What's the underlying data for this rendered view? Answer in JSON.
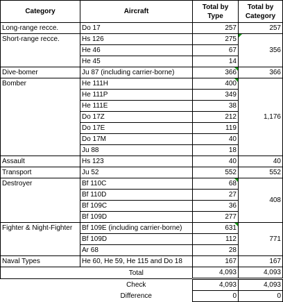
{
  "header": {
    "category": "Category",
    "aircraft": "Aircraft",
    "total_by_type": "Total by Type",
    "total_by_category": "Total by Category"
  },
  "rows": [
    {
      "category": "Long-range recce.",
      "aircraft": "Do 17",
      "total_type": "257",
      "total_category": "257"
    },
    {
      "category": "Short-range recce.",
      "aircraft": "Hs 126",
      "total_type": "275",
      "total_category": ""
    },
    {
      "category": "",
      "aircraft": "He 46",
      "total_type": "67",
      "total_category": "356"
    },
    {
      "category": "",
      "aircraft": "He 45",
      "total_type": "14",
      "total_category": ""
    },
    {
      "category": "Dive-bomer",
      "aircraft": "Ju 87 (including carrier-borne)",
      "total_type": "366",
      "total_category": "366"
    },
    {
      "category": "Bomber",
      "aircraft": "He 111H",
      "total_type": "400",
      "total_category": ""
    },
    {
      "category": "",
      "aircraft": "He 111P",
      "total_type": "349",
      "total_category": ""
    },
    {
      "category": "",
      "aircraft": "He 111E",
      "total_type": "38",
      "total_category": ""
    },
    {
      "category": "",
      "aircraft": "Do 17Z",
      "total_type": "212",
      "total_category": "1,176"
    },
    {
      "category": "",
      "aircraft": "Do 17E",
      "total_type": "119",
      "total_category": ""
    },
    {
      "category": "",
      "aircraft": "Do 17M",
      "total_type": "40",
      "total_category": ""
    },
    {
      "category": "",
      "aircraft": "Ju 88",
      "total_type": "18",
      "total_category": ""
    },
    {
      "category": "Assault",
      "aircraft": "Hs 123",
      "total_type": "40",
      "total_category": "40"
    },
    {
      "category": "Transport",
      "aircraft": "Ju 52",
      "total_type": "552",
      "total_category": "552"
    },
    {
      "category": "Destroyer",
      "aircraft": "Bf 110C",
      "total_type": "68",
      "total_category": ""
    },
    {
      "category": "",
      "aircraft": "Bf 110D",
      "total_type": "27",
      "total_category": "408"
    },
    {
      "category": "",
      "aircraft": "Bf 109C",
      "total_type": "36",
      "total_category": ""
    },
    {
      "category": "",
      "aircraft": "Bf 109D",
      "total_type": "277",
      "total_category": ""
    },
    {
      "category": "Fighter & Night-Fighter",
      "aircraft": "Bf 109E (including carrier-borne)",
      "total_type": "631",
      "total_category": ""
    },
    {
      "category": "",
      "aircraft": "Bf 109D",
      "total_type": "112",
      "total_category": "771"
    },
    {
      "category": "",
      "aircraft": "Ar 68",
      "total_type": "28",
      "total_category": ""
    },
    {
      "category": "Naval Types",
      "aircraft": "He 60, He 59, He 115 and Do 18",
      "total_type": "167",
      "total_category": "167"
    }
  ],
  "total": {
    "label": "Total",
    "total_type": "4,093",
    "total_category": "4,093"
  },
  "check": {
    "label": "Check",
    "total_type": "4,093",
    "total_category": "4,093"
  },
  "difference": {
    "label": "Difference",
    "total_type": "0",
    "total_category": "0"
  },
  "colors": {
    "comment_marker": "#1a9a1a",
    "grid_line": "#000000",
    "light_line": "#c8c8c8"
  }
}
